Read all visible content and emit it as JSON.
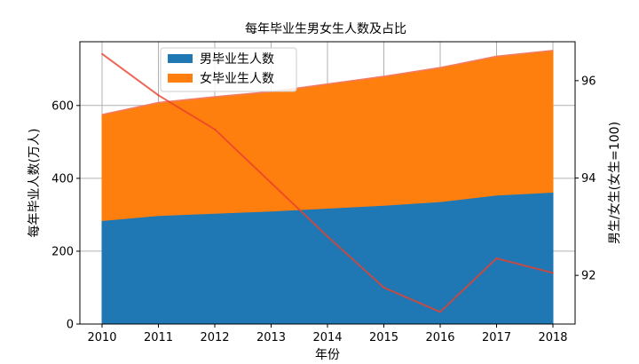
{
  "chart_data": {
    "type": "area",
    "title": "每年毕业生男女生人数及占比",
    "xlabel": "年份",
    "ylabel": "每年毕业人数(万人)",
    "y2label": "男生/女生(女生=100)",
    "categories": [
      "2010",
      "2011",
      "2012",
      "2013",
      "2014",
      "2015",
      "2016",
      "2017",
      "2018"
    ],
    "ylim": [
      0,
      775
    ],
    "y2lim": [
      91.0,
      96.8
    ],
    "yticks": [
      "0",
      "200",
      "400",
      "600"
    ],
    "y2ticks": [
      "92",
      "94",
      "96"
    ],
    "grid": true,
    "legend_position": "top-center",
    "series": [
      {
        "name": "男毕业生人数",
        "kind": "stacked-area",
        "axis": "left",
        "color": "#1f77b4",
        "values": [
          284,
          298,
          304,
          310,
          318,
          326,
          336,
          354,
          362
        ]
      },
      {
        "name": "女毕业生人数",
        "kind": "stacked-area",
        "axis": "left",
        "color": "#ff7f0e",
        "values": [
          291,
          310,
          320,
          328,
          341,
          354,
          368,
          381,
          389
        ]
      },
      {
        "kind": "line",
        "axis": "right",
        "color": "#e8412c",
        "values": [
          96.55,
          95.7,
          95.0,
          93.9,
          92.8,
          91.75,
          91.25,
          92.35,
          92.05
        ]
      }
    ]
  }
}
